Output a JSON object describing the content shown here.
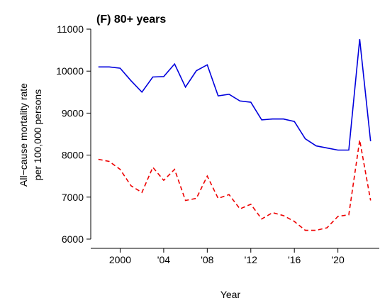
{
  "chart_data": {
    "type": "line",
    "title": "(F) 80+ years",
    "xlabel": "Year",
    "ylabel": [
      "All−cause mortality rate",
      "per 100,000 persons"
    ],
    "x": [
      1998,
      1999,
      2000,
      2001,
      2002,
      2003,
      2004,
      2005,
      2006,
      2007,
      2008,
      2009,
      2010,
      2011,
      2012,
      2013,
      2014,
      2015,
      2016,
      2017,
      2018,
      2019,
      2020,
      2021,
      2022,
      2023
    ],
    "series": [
      {
        "color": "#0000dd",
        "dash": false,
        "values": [
          10100,
          10100,
          10070,
          9770,
          9500,
          9860,
          9870,
          10170,
          9620,
          10010,
          10150,
          9410,
          9450,
          9290,
          9260,
          8840,
          8860,
          8860,
          8800,
          8390,
          8220,
          8170,
          8120,
          8120,
          10760,
          8330
        ]
      },
      {
        "color": "#ee0000",
        "dash": true,
        "values": [
          7900,
          7850,
          7660,
          7270,
          7110,
          7710,
          7400,
          7660,
          6920,
          6970,
          7500,
          6970,
          7060,
          6720,
          6830,
          6480,
          6630,
          6560,
          6420,
          6210,
          6210,
          6270,
          6540,
          6580,
          8360,
          6920
        ]
      }
    ],
    "xlim": [
      1997.3,
      2023.8
    ],
    "xticks": [
      2000,
      {
        "value": 2004,
        "label": "'04"
      },
      {
        "value": 2008,
        "label": "'08"
      },
      {
        "value": 2012,
        "label": "'12"
      },
      {
        "value": 2016,
        "label": "'16"
      },
      {
        "value": 2020,
        "label": "'20"
      }
    ],
    "ylim": [
      5800,
      11200
    ],
    "yticks": [
      6000,
      7000,
      8000,
      9000,
      10000,
      11000
    ]
  }
}
